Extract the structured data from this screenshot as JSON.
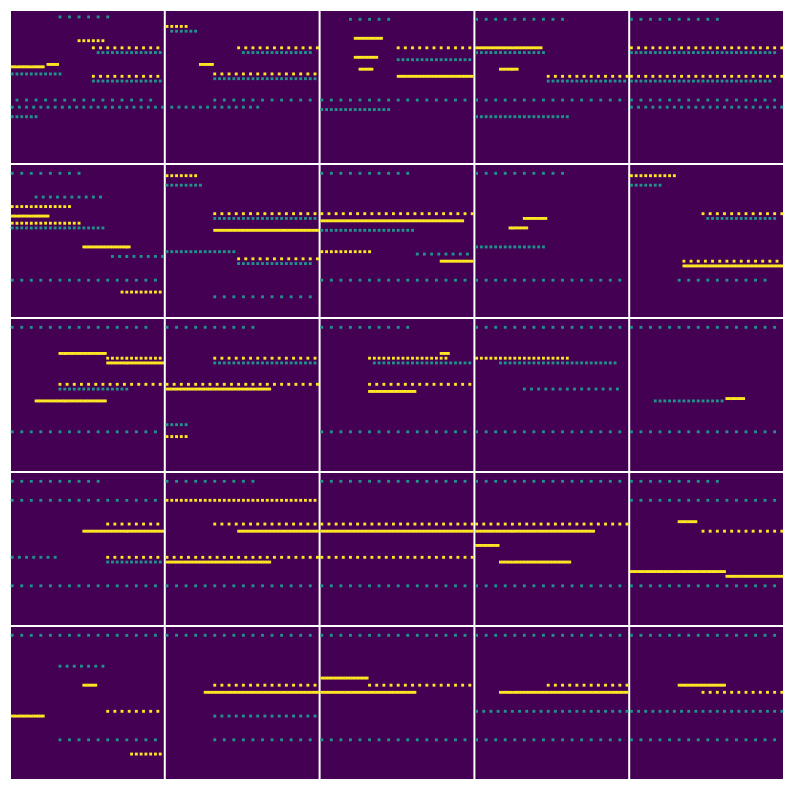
{
  "chart_data": {
    "type": "heatmap",
    "tick_labels": false,
    "grid": false,
    "rows": 5,
    "cols": 5,
    "xlim": [
      0,
      64
    ],
    "ylim": [
      0,
      64
    ],
    "color_range": [
      0,
      1
    ],
    "colors": [
      "#440154",
      "#3b528b",
      "#21918c",
      "#5ec962",
      "#fde725"
    ],
    "panels": [
      {
        "runs": [
          [
            20,
            42,
            2,
            0.5,
            4
          ],
          [
            28,
            40,
            12,
            1,
            2
          ],
          [
            34,
            64,
            15,
            1,
            3
          ],
          [
            36,
            63,
            17,
            0.5,
            2
          ],
          [
            0,
            14,
            23,
            1,
            1
          ],
          [
            15,
            20,
            22,
            1,
            1
          ],
          [
            0,
            22,
            26,
            0.5,
            2
          ],
          [
            34,
            64,
            27,
            1,
            3
          ],
          [
            34,
            64,
            29,
            0.5,
            2
          ],
          [
            2,
            60,
            37,
            0.5,
            4
          ],
          [
            0,
            64,
            40,
            0.5,
            3
          ],
          [
            0,
            12,
            44,
            0.5,
            2
          ]
        ]
      },
      {
        "runs": [
          [
            0,
            10,
            6,
            1,
            2
          ],
          [
            2,
            14,
            8,
            0.5,
            2
          ],
          [
            30,
            64,
            15,
            1,
            3
          ],
          [
            32,
            62,
            17,
            0.5,
            2
          ],
          [
            14,
            20,
            22,
            1,
            1
          ],
          [
            20,
            64,
            26,
            1,
            3
          ],
          [
            20,
            64,
            28,
            0.5,
            2
          ],
          [
            20,
            64,
            37,
            0.5,
            4
          ],
          [
            2,
            40,
            40,
            0.5,
            3
          ]
        ]
      },
      {
        "runs": [
          [
            12,
            30,
            3,
            0.5,
            4
          ],
          [
            14,
            26,
            11,
            1,
            1
          ],
          [
            32,
            64,
            15,
            1,
            3
          ],
          [
            14,
            24,
            19,
            1,
            1
          ],
          [
            32,
            64,
            20,
            0.5,
            2
          ],
          [
            16,
            22,
            24,
            1,
            1
          ],
          [
            32,
            64,
            27,
            1,
            1
          ],
          [
            0,
            64,
            37,
            0.5,
            4
          ],
          [
            0,
            30,
            41,
            0.5,
            2
          ]
        ]
      },
      {
        "runs": [
          [
            0,
            40,
            3,
            0.5,
            4
          ],
          [
            0,
            28,
            15,
            1,
            1
          ],
          [
            0,
            30,
            17,
            0.5,
            2
          ],
          [
            10,
            18,
            24,
            1,
            1
          ],
          [
            30,
            64,
            27,
            1,
            3
          ],
          [
            30,
            64,
            29,
            0.5,
            2
          ],
          [
            0,
            64,
            37,
            0.5,
            4
          ],
          [
            0,
            40,
            44,
            0.5,
            2
          ]
        ]
      },
      {
        "runs": [
          [
            0,
            40,
            3,
            0.5,
            4
          ],
          [
            0,
            64,
            15,
            1,
            3
          ],
          [
            0,
            62,
            17,
            0.5,
            2
          ],
          [
            0,
            64,
            27,
            1,
            3
          ],
          [
            0,
            60,
            29,
            0.5,
            2
          ],
          [
            0,
            64,
            37,
            0.5,
            4
          ],
          [
            0,
            64,
            40,
            0.5,
            3
          ]
        ]
      },
      {
        "runs": [
          [
            0,
            30,
            3,
            0.5,
            4
          ],
          [
            10,
            40,
            13,
            0.5,
            3
          ],
          [
            0,
            26,
            17,
            1,
            2
          ],
          [
            0,
            16,
            21,
            1,
            1
          ],
          [
            0,
            30,
            24,
            1,
            2
          ],
          [
            0,
            40,
            26,
            0.5,
            2
          ],
          [
            30,
            50,
            34,
            1,
            1
          ],
          [
            42,
            64,
            38,
            0.5,
            3
          ],
          [
            0,
            64,
            48,
            0.5,
            4
          ],
          [
            46,
            64,
            53,
            1,
            2
          ]
        ]
      },
      {
        "runs": [
          [
            0,
            14,
            4,
            1,
            2
          ],
          [
            0,
            16,
            8,
            0.5,
            2
          ],
          [
            20,
            64,
            20,
            1,
            3
          ],
          [
            20,
            64,
            22,
            0.5,
            2
          ],
          [
            20,
            64,
            27,
            1,
            1
          ],
          [
            0,
            30,
            36,
            0.5,
            2
          ],
          [
            30,
            64,
            39,
            1,
            3
          ],
          [
            30,
            62,
            41,
            0.5,
            2
          ],
          [
            20,
            64,
            55,
            0.5,
            4
          ]
        ]
      },
      {
        "runs": [
          [
            0,
            40,
            3,
            0.5,
            4
          ],
          [
            0,
            64,
            20,
            1,
            3
          ],
          [
            0,
            60,
            23,
            1,
            1
          ],
          [
            0,
            40,
            27,
            0.5,
            2
          ],
          [
            0,
            22,
            36,
            1,
            2
          ],
          [
            40,
            64,
            37,
            0.5,
            3
          ],
          [
            50,
            64,
            40,
            1,
            1
          ],
          [
            0,
            64,
            48,
            0.5,
            4
          ]
        ]
      },
      {
        "runs": [
          [
            0,
            40,
            3,
            0.5,
            4
          ],
          [
            20,
            30,
            22,
            1,
            1
          ],
          [
            14,
            22,
            26,
            1,
            1
          ],
          [
            0,
            30,
            34,
            0.5,
            2
          ],
          [
            0,
            64,
            48,
            0.5,
            4
          ]
        ]
      },
      {
        "runs": [
          [
            0,
            20,
            4,
            1,
            2
          ],
          [
            0,
            14,
            8,
            0.5,
            2
          ],
          [
            30,
            64,
            20,
            1,
            3
          ],
          [
            32,
            62,
            22,
            0.5,
            2
          ],
          [
            22,
            64,
            40,
            1,
            3
          ],
          [
            22,
            64,
            42,
            1,
            1
          ],
          [
            20,
            60,
            48,
            0.5,
            4
          ]
        ]
      },
      {
        "runs": [
          [
            0,
            60,
            3,
            0.5,
            4
          ],
          [
            20,
            40,
            14,
            1,
            1
          ],
          [
            40,
            64,
            16,
            1,
            2
          ],
          [
            40,
            64,
            18,
            1,
            1
          ],
          [
            20,
            64,
            27,
            1,
            3
          ],
          [
            20,
            50,
            29,
            0.5,
            2
          ],
          [
            10,
            40,
            34,
            1,
            1
          ],
          [
            0,
            64,
            47,
            0.5,
            4
          ]
        ]
      },
      {
        "runs": [
          [
            0,
            40,
            3,
            0.5,
            4
          ],
          [
            20,
            64,
            16,
            1,
            3
          ],
          [
            20,
            64,
            18,
            0.5,
            2
          ],
          [
            0,
            64,
            27,
            1,
            3
          ],
          [
            0,
            44,
            29,
            1,
            1
          ],
          [
            0,
            10,
            44,
            0.5,
            2
          ],
          [
            0,
            10,
            49,
            1,
            2
          ]
        ]
      },
      {
        "runs": [
          [
            0,
            40,
            3,
            0.5,
            4
          ],
          [
            20,
            54,
            16,
            1,
            2
          ],
          [
            50,
            54,
            14,
            1,
            1
          ],
          [
            22,
            64,
            18,
            0.5,
            2
          ],
          [
            20,
            64,
            27,
            1,
            3
          ],
          [
            20,
            40,
            30,
            1,
            1
          ],
          [
            0,
            64,
            47,
            0.5,
            4
          ]
        ]
      },
      {
        "runs": [
          [
            0,
            64,
            3,
            0.5,
            4
          ],
          [
            0,
            40,
            16,
            1,
            2
          ],
          [
            10,
            60,
            18,
            0.5,
            2
          ],
          [
            20,
            60,
            29,
            0.5,
            3
          ],
          [
            0,
            64,
            47,
            0.5,
            4
          ]
        ]
      },
      {
        "runs": [
          [
            0,
            64,
            3,
            0.5,
            4
          ],
          [
            10,
            40,
            34,
            0.5,
            2
          ],
          [
            40,
            48,
            33,
            1,
            1
          ],
          [
            0,
            64,
            47,
            0.5,
            4
          ]
        ]
      },
      {
        "runs": [
          [
            0,
            40,
            3,
            0.5,
            4
          ],
          [
            0,
            64,
            11,
            0.5,
            4
          ],
          [
            40,
            64,
            21,
            1,
            3
          ],
          [
            30,
            64,
            24,
            1,
            1
          ],
          [
            40,
            64,
            35,
            1,
            3
          ],
          [
            0,
            20,
            35,
            0.5,
            3
          ],
          [
            40,
            64,
            37,
            0.5,
            2
          ],
          [
            0,
            64,
            47,
            0.5,
            4
          ]
        ]
      },
      {
        "runs": [
          [
            0,
            40,
            3,
            0.5,
            4
          ],
          [
            0,
            64,
            11,
            1,
            2
          ],
          [
            20,
            64,
            21,
            1,
            3
          ],
          [
            30,
            64,
            24,
            1,
            1
          ],
          [
            0,
            64,
            35,
            1,
            3
          ],
          [
            0,
            44,
            37,
            1,
            1
          ],
          [
            0,
            64,
            47,
            0.5,
            4
          ]
        ]
      },
      {
        "runs": [
          [
            0,
            64,
            3,
            0.5,
            4
          ],
          [
            0,
            64,
            21,
            1,
            3
          ],
          [
            0,
            64,
            24,
            1,
            1
          ],
          [
            0,
            64,
            35,
            1,
            3
          ],
          [
            0,
            64,
            47,
            0.5,
            4
          ]
        ]
      },
      {
        "runs": [
          [
            0,
            64,
            3,
            0.5,
            4
          ],
          [
            0,
            64,
            21,
            1,
            3
          ],
          [
            0,
            50,
            24,
            1,
            1
          ],
          [
            0,
            10,
            30,
            1,
            1
          ],
          [
            10,
            40,
            37,
            1,
            1
          ],
          [
            0,
            64,
            47,
            0.5,
            4
          ]
        ]
      },
      {
        "runs": [
          [
            0,
            40,
            3,
            0.5,
            4
          ],
          [
            0,
            64,
            11,
            0.5,
            4
          ],
          [
            20,
            28,
            20,
            1,
            1
          ],
          [
            30,
            64,
            24,
            1,
            3
          ],
          [
            0,
            40,
            41,
            1,
            1
          ],
          [
            40,
            64,
            43,
            1,
            1
          ],
          [
            0,
            64,
            47,
            0.5,
            4
          ]
        ]
      },
      {
        "runs": [
          [
            0,
            64,
            3,
            0.5,
            4
          ],
          [
            20,
            40,
            16,
            0.5,
            3
          ],
          [
            30,
            36,
            24,
            1,
            1
          ],
          [
            40,
            64,
            35,
            1,
            3
          ],
          [
            0,
            14,
            37,
            1,
            1
          ],
          [
            20,
            64,
            47,
            0.5,
            4
          ],
          [
            50,
            64,
            53,
            1,
            2
          ]
        ]
      },
      {
        "runs": [
          [
            0,
            64,
            3,
            0.5,
            4
          ],
          [
            20,
            64,
            24,
            1,
            3
          ],
          [
            16,
            64,
            27,
            1,
            1
          ],
          [
            20,
            64,
            37,
            0.5,
            3
          ],
          [
            20,
            64,
            47,
            0.5,
            4
          ]
        ]
      },
      {
        "runs": [
          [
            0,
            64,
            3,
            0.5,
            4
          ],
          [
            0,
            20,
            21,
            1,
            1
          ],
          [
            20,
            64,
            24,
            1,
            3
          ],
          [
            0,
            40,
            27,
            1,
            1
          ],
          [
            0,
            64,
            47,
            0.5,
            4
          ]
        ]
      },
      {
        "runs": [
          [
            0,
            64,
            3,
            0.5,
            4
          ],
          [
            30,
            64,
            24,
            1,
            3
          ],
          [
            10,
            64,
            27,
            1,
            1
          ],
          [
            0,
            64,
            35,
            0.5,
            3
          ],
          [
            0,
            64,
            47,
            0.5,
            4
          ]
        ]
      },
      {
        "runs": [
          [
            0,
            64,
            3,
            0.5,
            4
          ],
          [
            20,
            40,
            24,
            1,
            1
          ],
          [
            30,
            64,
            27,
            1,
            3
          ],
          [
            0,
            64,
            35,
            0.5,
            3
          ],
          [
            0,
            64,
            47,
            0.5,
            4
          ]
        ]
      }
    ]
  }
}
